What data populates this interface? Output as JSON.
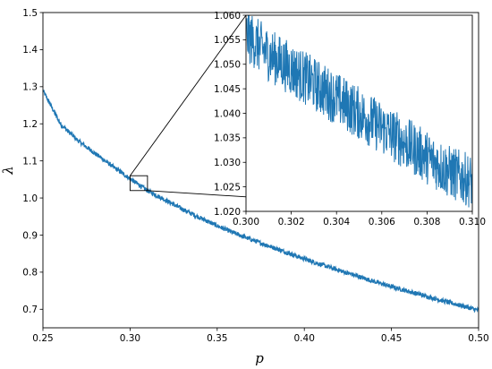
{
  "chart_data": [
    {
      "type": "line",
      "title": "",
      "xlabel": "p",
      "ylabel": "λ",
      "xlim": [
        0.25,
        0.5
      ],
      "ylim": [
        0.65,
        1.5
      ],
      "xticks": [
        "0.25",
        "0.30",
        "0.35",
        "0.40",
        "0.45",
        "0.50"
      ],
      "yticks": [
        "0.7",
        "0.8",
        "0.9",
        "1.0",
        "1.1",
        "1.2",
        "1.3",
        "1.4",
        "1.5"
      ],
      "grid": false,
      "color": "#1f77b4",
      "series": [
        {
          "x": [
            0.25,
            0.26,
            0.27,
            0.28,
            0.29,
            0.3,
            0.31,
            0.32,
            0.33,
            0.34,
            0.35,
            0.36,
            0.37,
            0.38,
            0.39,
            0.4,
            0.41,
            0.42,
            0.43,
            0.44,
            0.45,
            0.46,
            0.47,
            0.48,
            0.49,
            0.5
          ],
          "values": [
            1.29,
            1.2,
            1.155,
            1.12,
            1.085,
            1.052,
            1.02,
            0.995,
            0.97,
            0.947,
            0.925,
            0.905,
            0.887,
            0.87,
            0.853,
            0.836,
            0.82,
            0.805,
            0.79,
            0.775,
            0.761,
            0.748,
            0.735,
            0.722,
            0.71,
            0.697
          ]
        }
      ]
    },
    {
      "type": "line",
      "title": "",
      "xlabel": "",
      "ylabel": "",
      "xlim": [
        0.3,
        0.31
      ],
      "ylim": [
        1.02,
        1.06
      ],
      "xticks": [
        "0.300",
        "0.302",
        "0.304",
        "0.306",
        "0.308",
        "0.310"
      ],
      "yticks": [
        "1.020",
        "1.025",
        "1.030",
        "1.035",
        "1.040",
        "1.045",
        "1.050",
        "1.055",
        "1.060"
      ],
      "grid": false,
      "color": "#1f77b4",
      "zoom_of": "main chart region p 0.300–0.310, λ 1.020–1.060",
      "series": [
        {
          "x": [
            0.3,
            0.301,
            0.302,
            0.303,
            0.304,
            0.305,
            0.306,
            0.307,
            0.308,
            0.309,
            0.31
          ],
          "values": [
            1.056,
            1.052,
            1.049,
            1.046,
            1.043,
            1.04,
            1.037,
            1.034,
            1.031,
            1.028,
            1.026
          ]
        }
      ]
    }
  ]
}
